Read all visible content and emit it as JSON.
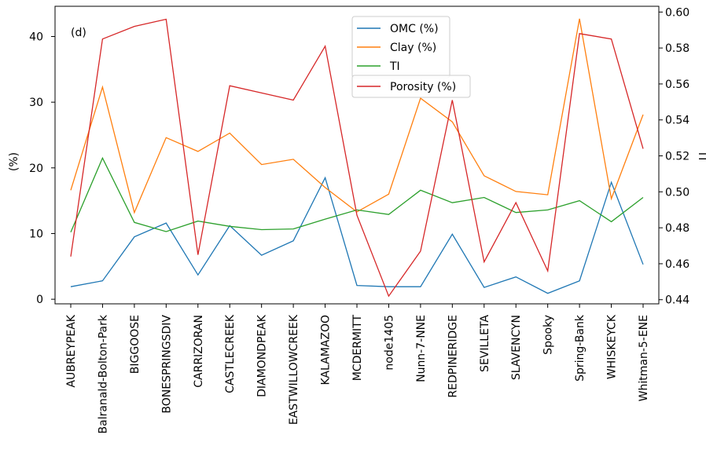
{
  "chart_data": {
    "type": "line",
    "panel_label": "(d)",
    "ylabel_left": "(%)",
    "ylabel_right": "TI",
    "ylim_left": [
      -0.7,
      44.6
    ],
    "ylim_right": [
      0.4377,
      0.6032
    ],
    "yticks_left": [
      0,
      10,
      20,
      30,
      40
    ],
    "yticks_right": [
      "0.44",
      "0.46",
      "0.48",
      "0.50",
      "0.52",
      "0.54",
      "0.56",
      "0.58",
      "0.60"
    ],
    "yticks_right_values": [
      0.44,
      0.46,
      0.48,
      0.5,
      0.52,
      0.54,
      0.56,
      0.58,
      0.6
    ],
    "grid": false,
    "legend_position": "top-center",
    "categories": [
      "AUBREYPEAK",
      "Balranald-Bolton-Park",
      "BIGGOOSE",
      "BONESPRINGSDIV",
      "CARRIZORAN",
      "CASTLECREEK",
      "DIAMONDPEAK",
      "EASTWILLOWCREEK",
      "KALAMAZOO",
      "MCDERMITT",
      "node1405",
      "Nunn-7-NNE",
      "REDPINERIDGE",
      "SEVILLETA",
      "SLAVENCYN",
      "Spooky",
      "Spring-Bank",
      "WHISKEYCK",
      "Whitman-5-ENE"
    ],
    "series": [
      {
        "name": "OMC (%)",
        "color": "#1f77b4",
        "axis": "left",
        "values": [
          1.9,
          2.8,
          9.5,
          11.6,
          3.7,
          11.2,
          6.7,
          8.9,
          18.5,
          2.1,
          1.9,
          1.9,
          9.9,
          1.8,
          3.4,
          0.9,
          2.8,
          17.8,
          5.3
        ]
      },
      {
        "name": "Clay (%)",
        "color": "#ff7f0e",
        "axis": "left",
        "values": [
          16.6,
          32.3,
          13.2,
          24.6,
          22.5,
          25.3,
          20.5,
          21.3,
          17.0,
          13.3,
          16.0,
          30.6,
          27.0,
          18.8,
          16.4,
          15.9,
          42.7,
          15.3,
          28.1
        ]
      },
      {
        "name": "TI",
        "color": "#2ca02c",
        "axis": "left",
        "values": [
          10.2,
          21.5,
          11.7,
          10.3,
          11.9,
          11.1,
          10.6,
          10.7,
          12.2,
          13.6,
          12.9,
          16.6,
          14.7,
          15.5,
          13.2,
          13.6,
          15.0,
          11.8,
          15.5
        ]
      },
      {
        "name": "Porosity (%)",
        "color": "#d62728",
        "axis": "right",
        "values": [
          0.464,
          0.585,
          0.592,
          0.596,
          0.465,
          0.559,
          0.555,
          0.551,
          0.581,
          0.487,
          0.442,
          0.467,
          0.551,
          0.461,
          0.494,
          0.456,
          0.588,
          0.585,
          0.524
        ]
      }
    ]
  }
}
